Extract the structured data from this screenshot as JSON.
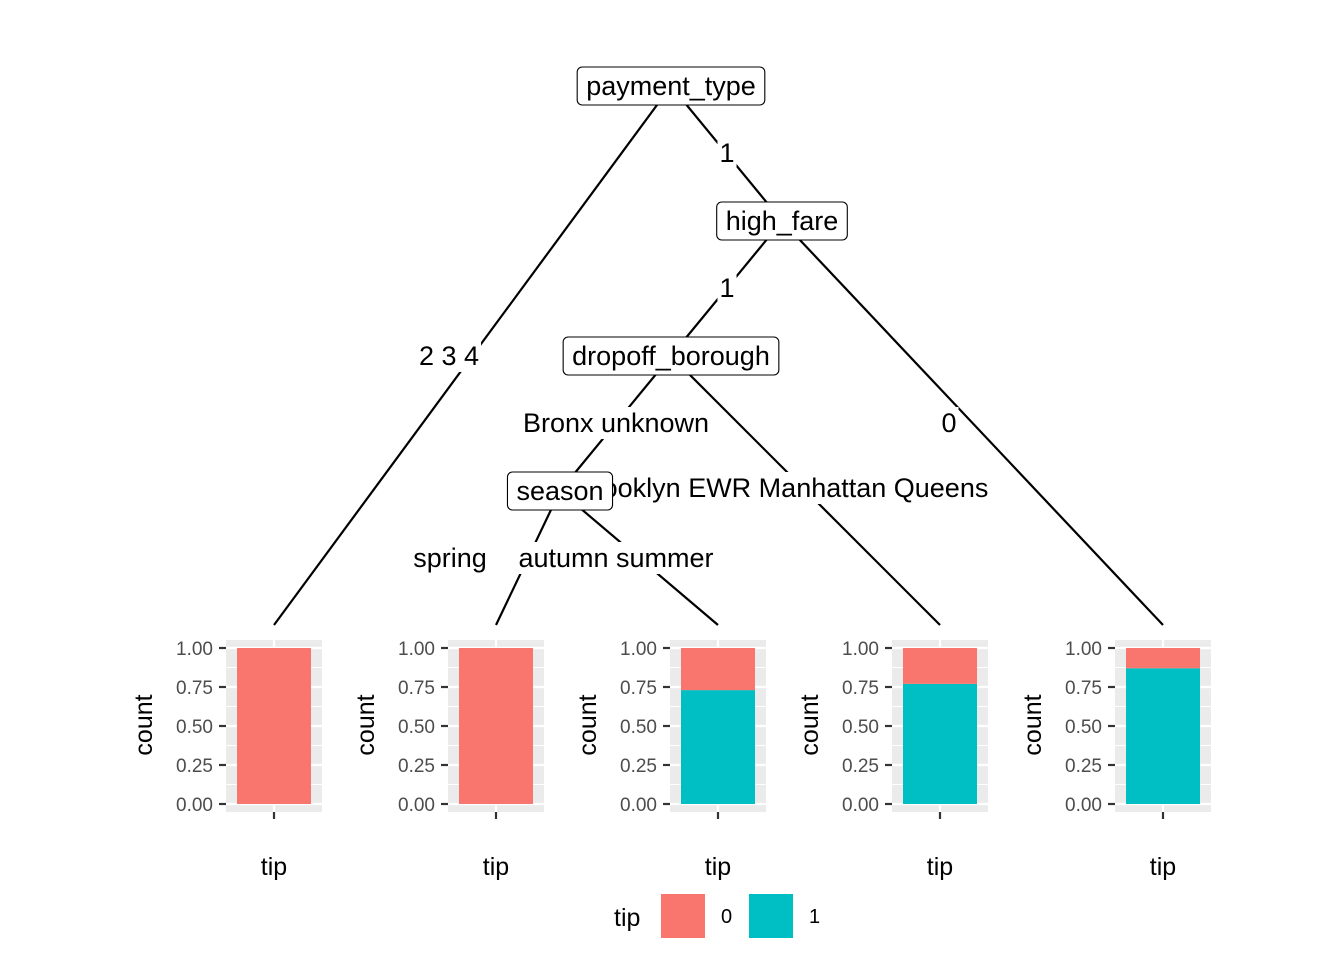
{
  "chart_data": {
    "type": "tree",
    "nodes": [
      {
        "id": "payment_type",
        "label": "payment_type"
      },
      {
        "id": "high_fare",
        "label": "high_fare"
      },
      {
        "id": "dropoff_borough",
        "label": "dropoff_borough"
      },
      {
        "id": "season",
        "label": "season"
      }
    ],
    "edges": [
      {
        "from": "payment_type",
        "to": "leaf1",
        "label": "2 3 4"
      },
      {
        "from": "payment_type",
        "to": "high_fare",
        "label": "1"
      },
      {
        "from": "high_fare",
        "to": "dropoff_borough",
        "label": "1"
      },
      {
        "from": "high_fare",
        "to": "leaf5",
        "label": "0"
      },
      {
        "from": "dropoff_borough",
        "to": "season",
        "label": "Bronx unknown"
      },
      {
        "from": "dropoff_borough",
        "to": "leaf4",
        "label": "Brooklyn EWR Manhattan Queens"
      },
      {
        "from": "season",
        "to": "leaf2",
        "label": "spring"
      },
      {
        "from": "season",
        "to": "leaf3",
        "label": "autumn summer"
      }
    ],
    "leaves": [
      {
        "id": "leaf1",
        "xlabel": "tip",
        "ylabel": "count",
        "series": [
          {
            "name": "0",
            "value": 1.0
          },
          {
            "name": "1",
            "value": 0.0
          }
        ]
      },
      {
        "id": "leaf2",
        "xlabel": "tip",
        "ylabel": "count",
        "series": [
          {
            "name": "0",
            "value": 1.0
          },
          {
            "name": "1",
            "value": 0.0
          }
        ]
      },
      {
        "id": "leaf3",
        "xlabel": "tip",
        "ylabel": "count",
        "series": [
          {
            "name": "0",
            "value": 0.27
          },
          {
            "name": "1",
            "value": 0.73
          }
        ]
      },
      {
        "id": "leaf4",
        "xlabel": "tip",
        "ylabel": "count",
        "series": [
          {
            "name": "0",
            "value": 0.23
          },
          {
            "name": "1",
            "value": 0.77
          }
        ]
      },
      {
        "id": "leaf5",
        "xlabel": "tip",
        "ylabel": "count",
        "series": [
          {
            "name": "0",
            "value": 0.13
          },
          {
            "name": "1",
            "value": 0.87
          }
        ]
      }
    ],
    "y_ticks": [
      "0.00",
      "0.25",
      "0.50",
      "0.75",
      "1.00"
    ],
    "ylim": [
      0,
      1
    ],
    "grid": true,
    "legend": {
      "title": "tip",
      "position": "bottom",
      "entries": [
        {
          "label": "0",
          "color": "#F8766D"
        },
        {
          "label": "1",
          "color": "#00BFC4"
        }
      ]
    }
  }
}
